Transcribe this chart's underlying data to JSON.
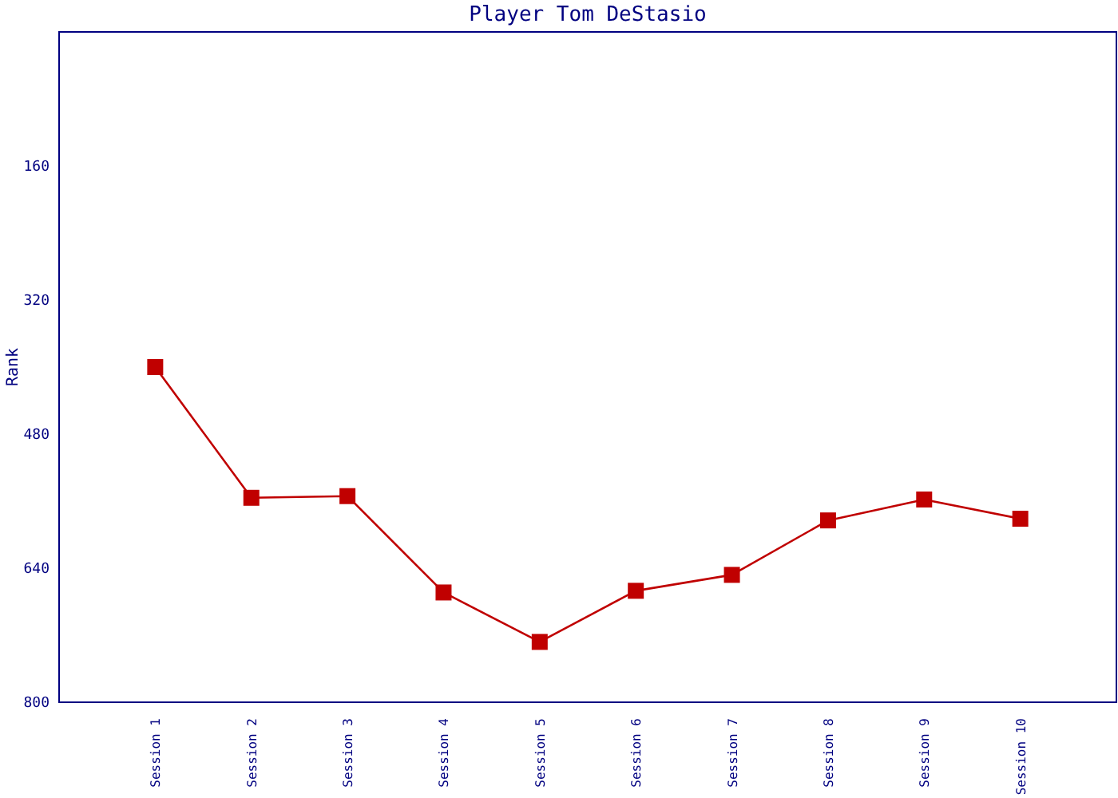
{
  "chart_data": {
    "type": "line",
    "title": "Player Tom DeStasio",
    "ylabel": "Rank",
    "categories": [
      "Session 1",
      "Session 2",
      "Session 3",
      "Session 4",
      "Session 5",
      "Session 6",
      "Session 7",
      "Session 8",
      "Session 9",
      "Session 10"
    ],
    "series": [
      {
        "color": "#c00000",
        "values": [
          400,
          556,
          554,
          669,
          728,
          667,
          648,
          583,
          558,
          581
        ]
      }
    ],
    "ylim": [
      800,
      0
    ],
    "yticks": [
      160,
      320,
      480,
      640,
      800
    ],
    "grid": false,
    "marker": "square",
    "line_style": "solid"
  }
}
